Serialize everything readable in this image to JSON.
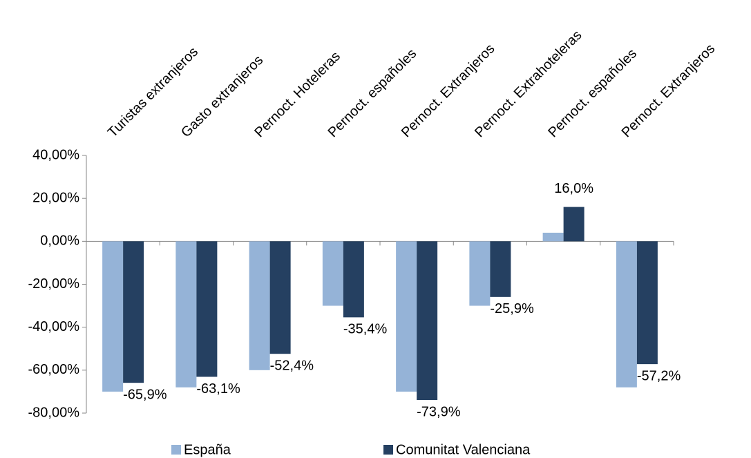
{
  "chart_data": {
    "type": "bar",
    "categories": [
      "Turistas extranjeros",
      "Gasto extranjeros",
      "Pernoct. Hoteleras",
      "Pernoct. españoles",
      "Pernoct. Extranjeros",
      "Pernoct. Extrahoteleras",
      "Pernoct. españoles",
      "Pernoct. Extranjeros"
    ],
    "series": [
      {
        "name": "España",
        "color": "#95b3d7",
        "values": [
          -70,
          -68,
          -60,
          -30,
          -70,
          -30,
          4,
          -68
        ]
      },
      {
        "name": "Comunitat Valenciana",
        "color": "#254061",
        "values": [
          -65.9,
          -63.1,
          -52.4,
          -35.4,
          -73.9,
          -25.9,
          16.0,
          -57.2
        ],
        "value_labels": [
          "-65,9%",
          "-63,1%",
          "-52,4%",
          "-35,4%",
          "-73,9%",
          "-25,9%",
          "16,0%",
          "-57,2%"
        ]
      }
    ],
    "ylim": [
      -80,
      40
    ],
    "yticks": [
      {
        "value": -80,
        "label": "-80,00%"
      },
      {
        "value": -60,
        "label": "-60,00%"
      },
      {
        "value": -40,
        "label": "-40,00%"
      },
      {
        "value": -20,
        "label": "-20,00%"
      },
      {
        "value": 0,
        "label": "0,00%"
      },
      {
        "value": 20,
        "label": "20,00%"
      },
      {
        "value": 40,
        "label": "40,00%"
      }
    ],
    "legend": "bottom"
  }
}
